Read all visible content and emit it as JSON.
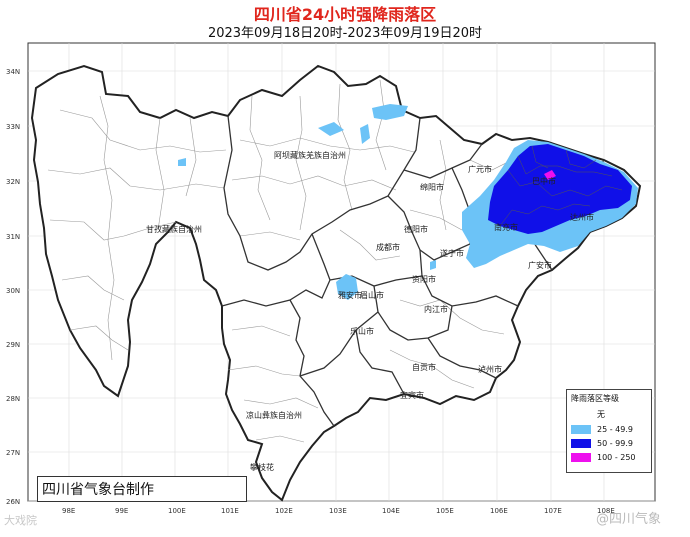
{
  "title": "四川省24小时强降雨落区",
  "subtitle": "2023年09月18日20时-2023年09月19日20时",
  "lat_labels": [
    "34N",
    "33N",
    "32N",
    "31N",
    "30N",
    "29N",
    "28N",
    "27N",
    "26N"
  ],
  "lon_labels": [
    "98E",
    "99E",
    "100E",
    "101E",
    "102E",
    "103E",
    "104E",
    "105E",
    "106E",
    "107E",
    "108E"
  ],
  "place_labels": [
    {
      "name": "阿坝藏族羌族自治州"
    },
    {
      "name": "甘孜藏族自治州"
    },
    {
      "name": "凉山彝族自治州"
    },
    {
      "name": "攀枝花"
    },
    {
      "name": "广元市"
    },
    {
      "name": "绵阳市"
    },
    {
      "name": "德阳市"
    },
    {
      "name": "成都市"
    },
    {
      "name": "雅安市"
    },
    {
      "name": "眉山市"
    },
    {
      "name": "乐山市"
    },
    {
      "name": "资阳市"
    },
    {
      "name": "遂宁市"
    },
    {
      "name": "南充市"
    },
    {
      "name": "巴中市"
    },
    {
      "name": "达州市"
    },
    {
      "name": "广安市"
    },
    {
      "name": "内江市"
    },
    {
      "name": "自贡市"
    },
    {
      "name": "宜宾市"
    },
    {
      "name": "泸州市"
    }
  ],
  "legend": {
    "title": "降雨落区等级",
    "items": [
      {
        "label": "无",
        "color": "#ffffff"
      },
      {
        "label": "25 - 49.9",
        "color": "#6cc3f7"
      },
      {
        "label": "50 - 99.9",
        "color": "#1010e8"
      },
      {
        "label": "100 - 250",
        "color": "#ee10ee"
      }
    ]
  },
  "producer": "四川省气象台制作",
  "watermarks": {
    "left": "大戏院",
    "right": "@四川气象"
  },
  "colors": {
    "title": "#e0261d",
    "light_rain": "#6cc3f7",
    "heavy_rain": "#1010e8",
    "extreme_rain": "#ee10ee"
  }
}
